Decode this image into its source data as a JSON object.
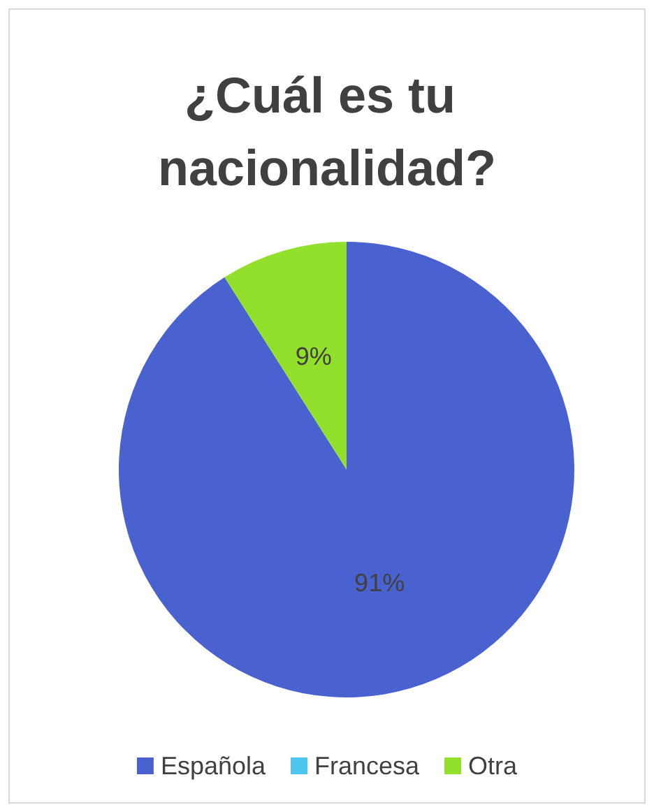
{
  "chart_data": {
    "type": "pie",
    "title": "¿Cuál es tu nacionalidad?",
    "categories": [
      "Española",
      "Francesa",
      "Otra"
    ],
    "values": [
      91,
      0,
      9
    ],
    "value_labels": [
      "91%",
      null,
      "9%"
    ],
    "colors": [
      "#4a62cf",
      "#4fc6f0",
      "#92e02c"
    ],
    "legend": "bottom"
  }
}
